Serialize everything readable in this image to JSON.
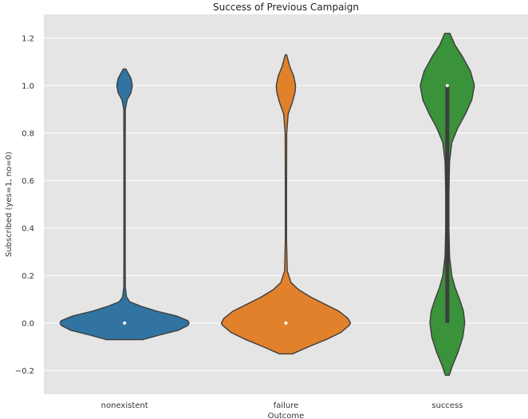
{
  "chart_data": {
    "type": "violin",
    "title": "Success of Previous Campaign",
    "xlabel": "Outcome",
    "ylabel": "Subscribed (yes=1, no=0)",
    "categories": [
      "nonexistent",
      "failure",
      "success"
    ],
    "ylim": [
      -0.3,
      1.3
    ],
    "yticks": [
      -0.2,
      0.0,
      0.2,
      0.4,
      0.6,
      0.8,
      1.0,
      1.2
    ],
    "ytick_labels": [
      "−0.2",
      "0.0",
      "0.2",
      "0.4",
      "0.6",
      "0.8",
      "1.0",
      "1.2"
    ],
    "grid": true,
    "background": "#e5e5e5",
    "colors": [
      "#3274a1",
      "#e1812c",
      "#3a923a"
    ],
    "series": [
      {
        "category": "nonexistent",
        "min": -0.07,
        "max": 1.07,
        "median": 0.0,
        "q1": 0.0,
        "q3": 0.0,
        "density": [
          [
            -0.07,
            0.28
          ],
          [
            -0.05,
            0.55
          ],
          [
            -0.03,
            0.84
          ],
          [
            -0.01,
            0.98
          ],
          [
            0.0,
            1.0
          ],
          [
            0.01,
            0.98
          ],
          [
            0.03,
            0.8
          ],
          [
            0.05,
            0.5
          ],
          [
            0.07,
            0.26
          ],
          [
            0.09,
            0.08
          ],
          [
            0.11,
            0.03
          ],
          [
            0.15,
            0.012
          ],
          [
            0.25,
            0.01
          ],
          [
            0.5,
            0.01
          ],
          [
            0.75,
            0.01
          ],
          [
            0.9,
            0.012
          ],
          [
            0.94,
            0.04
          ],
          [
            0.97,
            0.1
          ],
          [
            1.0,
            0.12
          ],
          [
            1.03,
            0.1
          ],
          [
            1.05,
            0.06
          ],
          [
            1.07,
            0.02
          ]
        ]
      },
      {
        "category": "failure",
        "min": -0.13,
        "max": 1.13,
        "median": 0.0,
        "q1": 0.0,
        "q3": 0.0,
        "density": [
          [
            -0.13,
            0.1
          ],
          [
            -0.1,
            0.35
          ],
          [
            -0.07,
            0.62
          ],
          [
            -0.04,
            0.85
          ],
          [
            -0.01,
            0.98
          ],
          [
            0.0,
            1.0
          ],
          [
            0.02,
            0.96
          ],
          [
            0.05,
            0.82
          ],
          [
            0.08,
            0.6
          ],
          [
            0.11,
            0.38
          ],
          [
            0.14,
            0.2
          ],
          [
            0.17,
            0.08
          ],
          [
            0.22,
            0.02
          ],
          [
            0.35,
            0.01
          ],
          [
            0.6,
            0.01
          ],
          [
            0.8,
            0.012
          ],
          [
            0.88,
            0.035
          ],
          [
            0.93,
            0.1
          ],
          [
            0.97,
            0.14
          ],
          [
            1.0,
            0.15
          ],
          [
            1.04,
            0.12
          ],
          [
            1.08,
            0.06
          ],
          [
            1.13,
            0.01
          ]
        ]
      },
      {
        "category": "success",
        "min": -0.22,
        "max": 1.22,
        "median": 1.0,
        "q1": 0.0,
        "q3": 1.0,
        "density": [
          [
            -0.22,
            0.03
          ],
          [
            -0.18,
            0.08
          ],
          [
            -0.12,
            0.17
          ],
          [
            -0.06,
            0.24
          ],
          [
            0.0,
            0.27
          ],
          [
            0.05,
            0.25
          ],
          [
            0.1,
            0.19
          ],
          [
            0.15,
            0.12
          ],
          [
            0.2,
            0.07
          ],
          [
            0.28,
            0.035
          ],
          [
            0.4,
            0.025
          ],
          [
            0.55,
            0.025
          ],
          [
            0.68,
            0.035
          ],
          [
            0.76,
            0.07
          ],
          [
            0.82,
            0.16
          ],
          [
            0.88,
            0.28
          ],
          [
            0.94,
            0.38
          ],
          [
            1.0,
            0.42
          ],
          [
            1.06,
            0.36
          ],
          [
            1.12,
            0.24
          ],
          [
            1.17,
            0.12
          ],
          [
            1.22,
            0.04
          ]
        ]
      }
    ]
  }
}
